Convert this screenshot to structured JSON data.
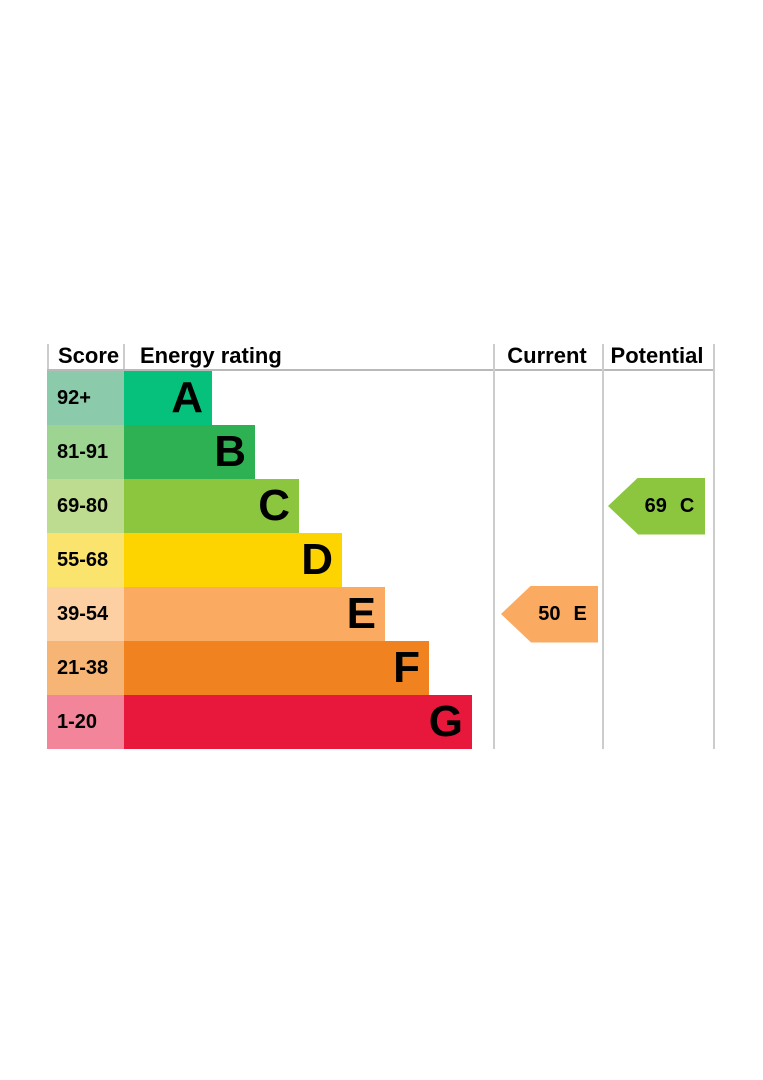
{
  "chart": {
    "headers": {
      "score": "Score",
      "rating": "Energy rating",
      "current": "Current",
      "potential": "Potential"
    }
  },
  "chart_data": {
    "type": "bar",
    "title": "",
    "categories": [
      "A",
      "B",
      "C",
      "D",
      "E",
      "F",
      "G"
    ],
    "bands": [
      {
        "letter": "A",
        "score_range": "92+",
        "bar_color": "#06c17b",
        "score_tint": "#8bcaaa"
      },
      {
        "letter": "B",
        "score_range": "81-91",
        "bar_color": "#2eb152",
        "score_tint": "#9ed491"
      },
      {
        "letter": "C",
        "score_range": "69-80",
        "bar_color": "#8cc63f",
        "score_tint": "#bddc90"
      },
      {
        "letter": "D",
        "score_range": "55-68",
        "bar_color": "#fdd400",
        "score_tint": "#fbe46e"
      },
      {
        "letter": "E",
        "score_range": "39-54",
        "bar_color": "#fbab61",
        "score_tint": "#fdd0a4"
      },
      {
        "letter": "F",
        "score_range": "21-38",
        "bar_color": "#f0821f",
        "score_tint": "#f6b475"
      },
      {
        "letter": "G",
        "score_range": "1-20",
        "bar_color": "#e8173c",
        "score_tint": "#f28599"
      }
    ],
    "markers": [
      {
        "name": "current",
        "value": "50",
        "letter": "E",
        "band_index": 4,
        "color": "#fbab61"
      },
      {
        "name": "potential",
        "value": "69",
        "letter": "C",
        "band_index": 2,
        "color": "#8cc63f"
      }
    ],
    "layout_hints": {
      "orientation": "horizontal-staircase",
      "columns": [
        "Score",
        "Energy rating",
        "Current",
        "Potential"
      ],
      "grid": "vertical column separators, header underline",
      "legend": "none"
    }
  }
}
